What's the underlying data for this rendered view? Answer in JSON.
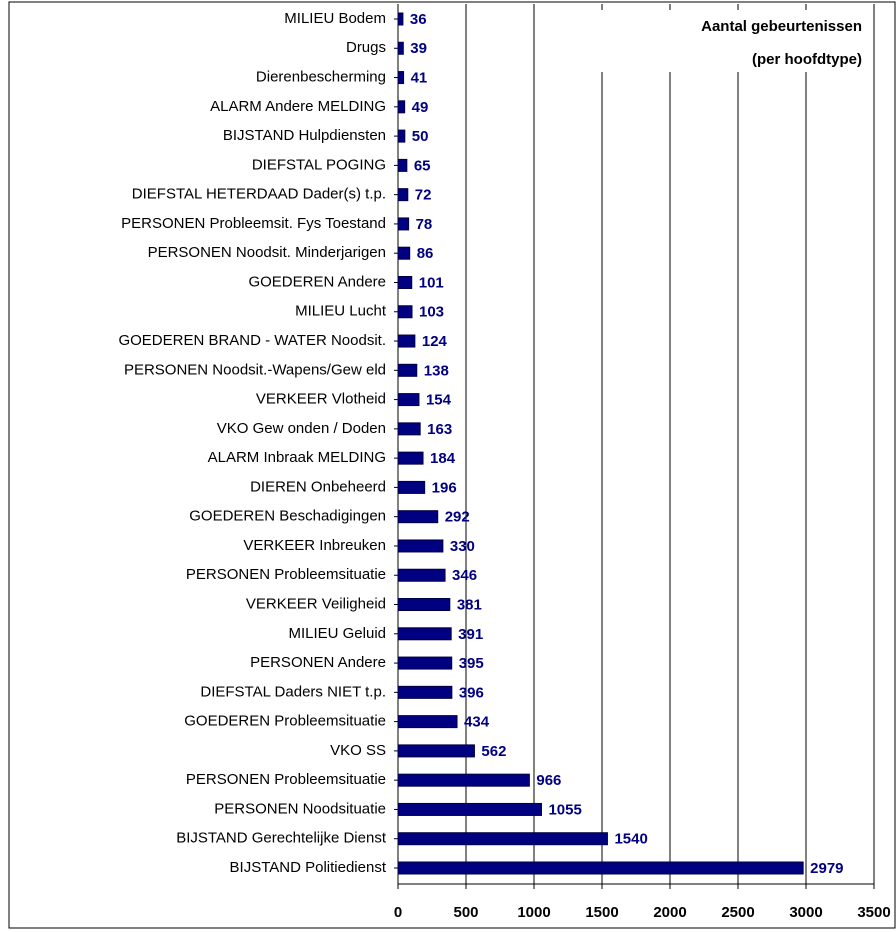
{
  "chart_data": {
    "type": "hbar",
    "title_lines": [
      "Aantal gebeurtenissen",
      "(per hoofdtype)"
    ],
    "categories": [
      "MILIEU Bodem",
      "Drugs",
      "Dierenbescherming",
      "ALARM Andere MELDING",
      "BIJSTAND Hulpdiensten",
      "DIEFSTAL POGING",
      "DIEFSTAL HETERDAAD Dader(s) t.p.",
      "PERSONEN Probleemsit. Fys Toestand",
      "PERSONEN Noodsit. Minderjarigen",
      "GOEDEREN Andere",
      "MILIEU Lucht",
      "GOEDEREN BRAND - WATER Noodsit.",
      "PERSONEN Noodsit.-Wapens/Gew eld",
      "VERKEER Vlotheid",
      "VKO Gew onden / Doden",
      "ALARM Inbraak MELDING",
      "DIEREN Onbeheerd",
      "GOEDEREN Beschadigingen",
      "VERKEER Inbreuken",
      "PERSONEN Probleemsituatie",
      "VERKEER Veiligheid",
      "MILIEU Geluid",
      "PERSONEN Andere",
      "DIEFSTAL Daders NIET t.p.",
      "GOEDEREN Probleemsituatie",
      "VKO SS",
      "PERSONEN Probleemsituatie",
      "PERSONEN Noodsituatie",
      "BIJSTAND Gerechtelijke Dienst",
      "BIJSTAND Politiedienst"
    ],
    "values": [
      36,
      39,
      41,
      49,
      50,
      65,
      72,
      78,
      86,
      101,
      103,
      124,
      138,
      154,
      163,
      184,
      196,
      292,
      330,
      346,
      381,
      391,
      395,
      396,
      434,
      562,
      966,
      1055,
      1540,
      2979
    ],
    "color": "#000080",
    "xlim": [
      0,
      3500
    ],
    "xticks": [
      0,
      500,
      1000,
      1500,
      2000,
      2500,
      3000,
      3500
    ],
    "grid": true
  }
}
